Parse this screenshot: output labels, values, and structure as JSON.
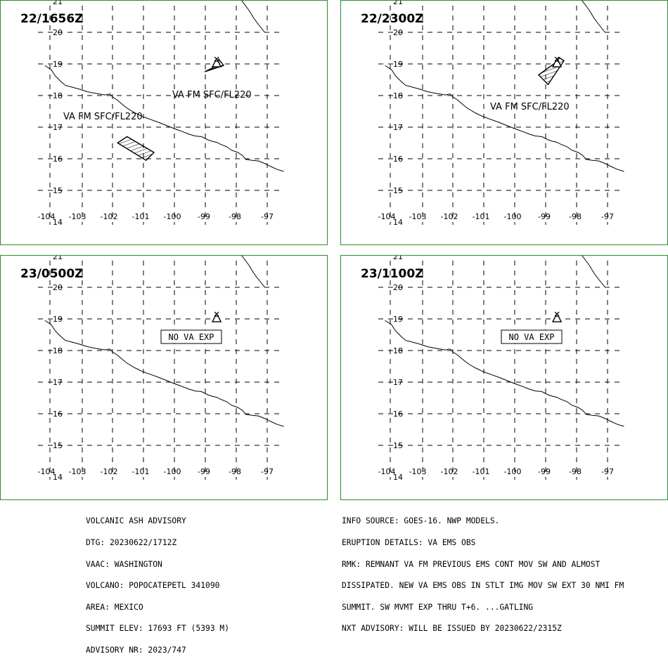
{
  "panels": [
    {
      "time": "22/1656Z",
      "labels": [
        "VA FM SFC/FL220",
        "VA FM SFC/FL220"
      ],
      "ash_polygons": [
        [
          [
            -98.6,
            18.95
          ],
          [
            -99.0,
            18.75
          ],
          [
            -98.4,
            18.95
          ],
          [
            -98.55,
            19.15
          ]
        ],
        [
          [
            -101.75,
            16.5
          ],
          [
            -101.45,
            16.7
          ],
          [
            -100.6,
            16.2
          ],
          [
            -100.85,
            15.95
          ]
        ]
      ],
      "no_va": false
    },
    {
      "time": "22/2300Z",
      "labels": [
        "VA FM SFC/FL220"
      ],
      "ash_polygons": [
        [
          [
            -98.65,
            19.05
          ],
          [
            -99.2,
            18.65
          ],
          [
            -98.9,
            18.35
          ],
          [
            -98.4,
            19.1
          ],
          [
            -98.55,
            19.2
          ]
        ]
      ],
      "no_va": false
    },
    {
      "time": "23/0500Z",
      "labels": [],
      "ash_polygons": [],
      "no_va": true,
      "no_va_text": "NO VA EXP"
    },
    {
      "time": "23/1100Z",
      "labels": [],
      "ash_polygons": [],
      "no_va": true,
      "no_va_text": "NO VA EXP"
    }
  ],
  "map": {
    "lon_ticks": [
      "-104",
      "-103",
      "-102",
      "-101",
      "-100",
      "-99",
      "-98",
      "-97"
    ],
    "lat_ticks": [
      "14",
      "15",
      "16",
      "17",
      "18",
      "19",
      "20",
      "21"
    ],
    "volcano": {
      "lon": -98.62,
      "lat": 19.02
    }
  },
  "advisory_left": [
    "VOLCANIC ASH ADVISORY",
    "DTG: 20230622/1712Z",
    "VAAC: WASHINGTON",
    "VOLCANO: POPOCATEPETL 341090",
    "AREA: MEXICO",
    "SUMMIT ELEV: 17693 FT (5393 M)",
    "ADVISORY NR: 2023/747"
  ],
  "advisory_right": [
    "INFO SOURCE: GOES-16. NWP MODELS.",
    "ERUPTION DETAILS: VA EMS OBS",
    "RMK: REMNANT VA FM PREVIOUS EMS CONT MOV SW AND ALMOST",
    "DISSIPATED. NEW VA EMS OBS IN STLT IMG MOV SW EXT 30 NMI FM",
    "SUMMIT. SW MVMT EXP THRU T+6. ...GATLING",
    "NXT ADVISORY: WILL BE ISSUED BY 20230622/2315Z"
  ],
  "colors": {
    "panel_border": "#2e8b2e",
    "grid": "#000000",
    "coast": "#000000"
  }
}
